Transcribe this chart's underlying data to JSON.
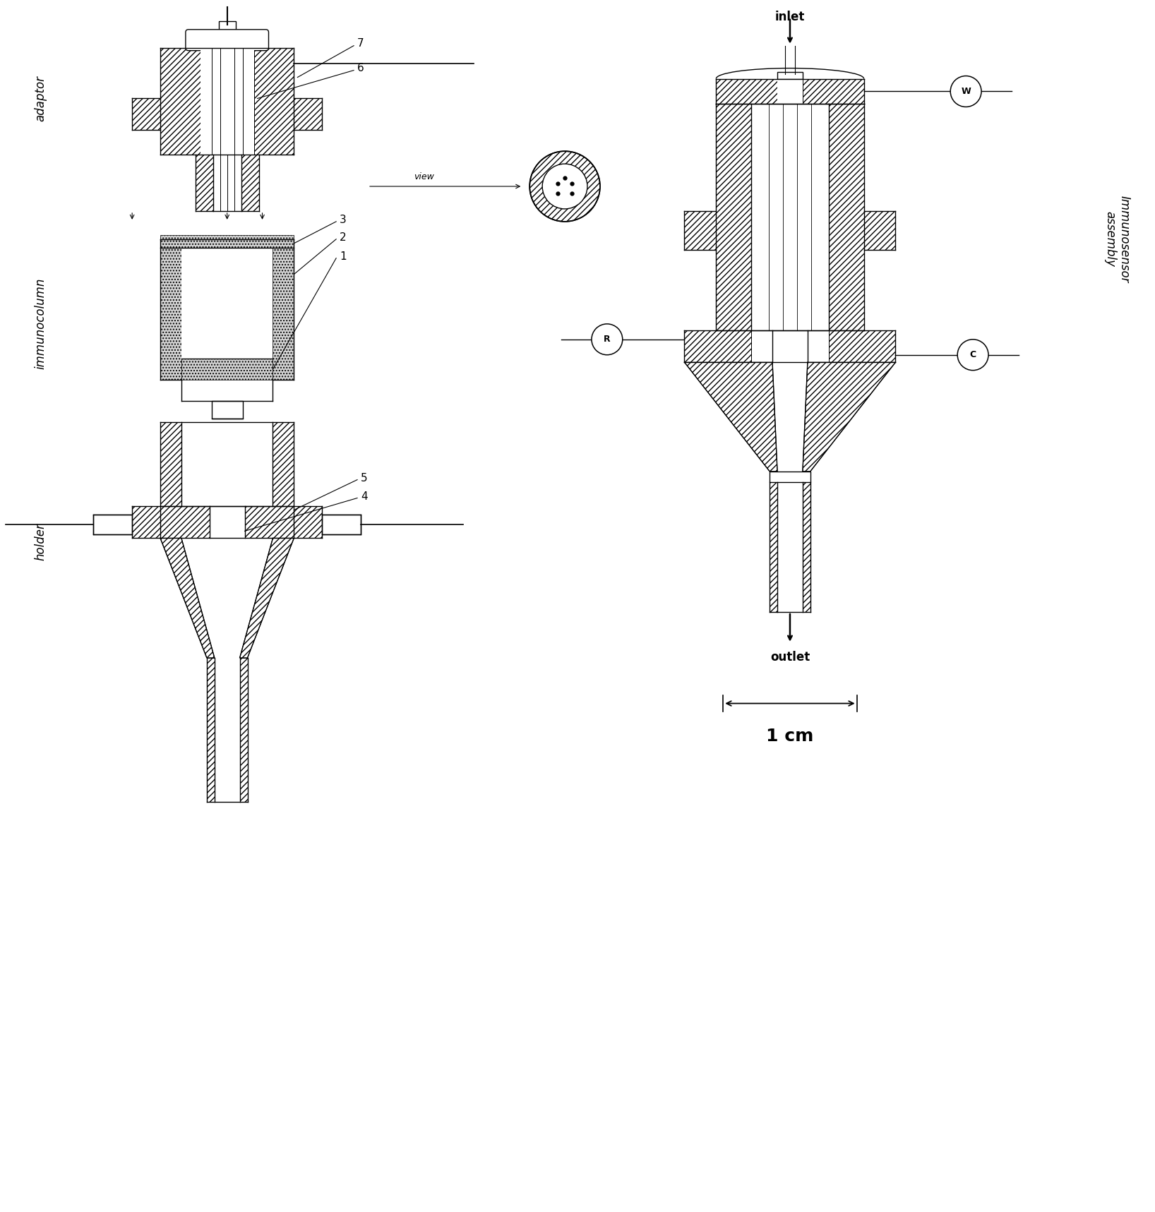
{
  "bg_color": "#ffffff",
  "line_color": "#000000",
  "labels": {
    "adaptor": "adaptor",
    "immunocolumn": "immunocolumn",
    "holder": "holder",
    "immunosensor_assembly": "Immunosensor\nassembly",
    "inlet": "inlet",
    "outlet": "outlet",
    "view": "view",
    "scale": "1 cm"
  },
  "fig_width": 16.36,
  "fig_height": 17.17
}
